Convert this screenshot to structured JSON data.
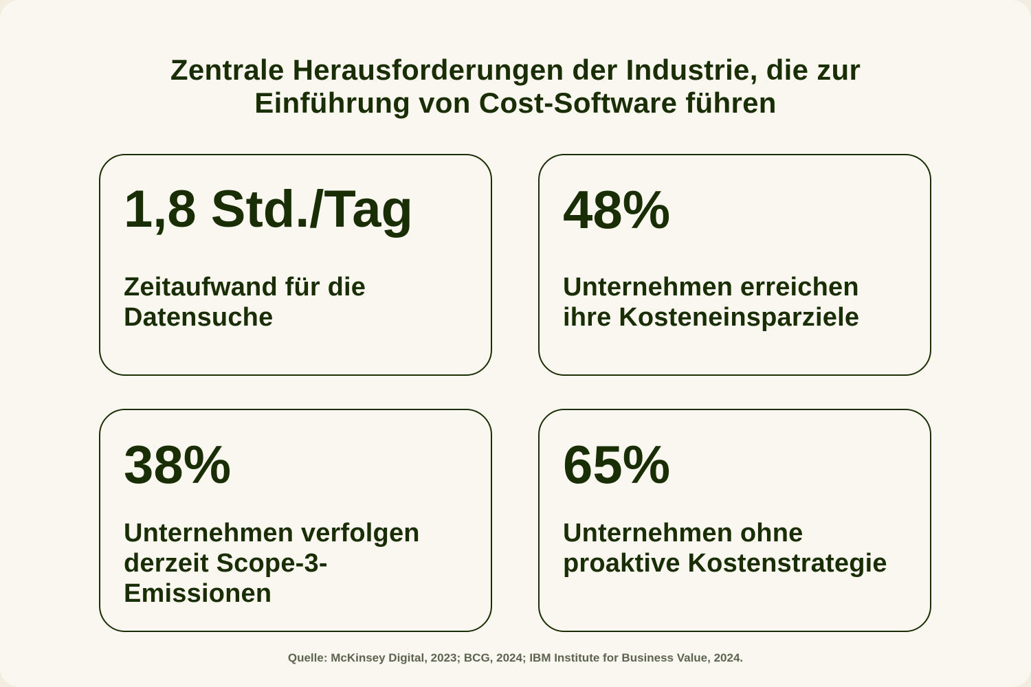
{
  "title_line1": "Zentrale Herausforderungen der Industrie, die zur",
  "title_line2": "Einführung von Cost-Software führen",
  "cards": [
    {
      "value": "1,8 Std./Tag",
      "description": "Zeitaufwand für die Datensuche"
    },
    {
      "value": "48%",
      "description": "Unternehmen erreichen ihre Kosteneinsparziele"
    },
    {
      "value": "38%",
      "description": "Unternehmen verfolgen derzeit Scope-3-Emissionen"
    },
    {
      "value": "65%",
      "description": "Unternehmen ohne proaktive Kostenstrategie"
    }
  ],
  "source": "Quelle: McKinsey Digital, 2023; BCG, 2024; IBM Institute for Business Value, 2024.",
  "colors": {
    "text": "#1a2e05",
    "background": "#faf7f0",
    "source_text": "#5d6450"
  }
}
